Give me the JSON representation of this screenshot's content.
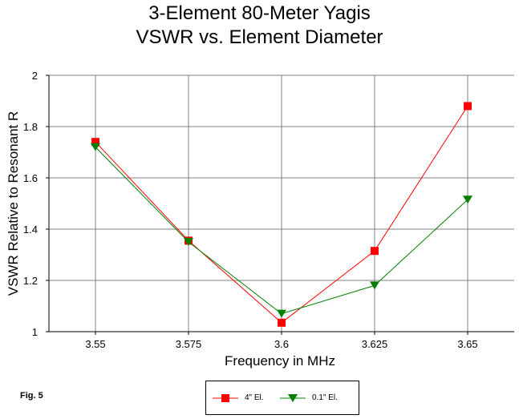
{
  "title_line1": "3-Element 80-Meter Yagis",
  "title_line2": "VSWR vs. Element Diameter",
  "figure_label": "Fig. 5",
  "chart_data": {
    "type": "line",
    "title": "3-Element 80-Meter Yagis VSWR vs. Element Diameter",
    "xlabel": "Frequency in MHz",
    "ylabel": "VSWR Relative to Resonant R",
    "categories": [
      "3.55",
      "3.575",
      "3.6",
      "3.625",
      "3.65"
    ],
    "ylim": [
      1,
      2
    ],
    "yticks": [
      "1",
      "1.2",
      "1.4",
      "1.6",
      "1.8",
      "2"
    ],
    "grid": true,
    "legend_position": "bottom-center",
    "series": [
      {
        "name": "4\" El.",
        "color": "#ff0000",
        "marker": "square",
        "values": [
          1.74,
          1.355,
          1.035,
          1.315,
          1.88
        ]
      },
      {
        "name": "0.1\" El.",
        "color": "#008000",
        "marker": "triangle-down",
        "values": [
          1.72,
          1.35,
          1.07,
          1.18,
          1.515
        ]
      }
    ]
  }
}
